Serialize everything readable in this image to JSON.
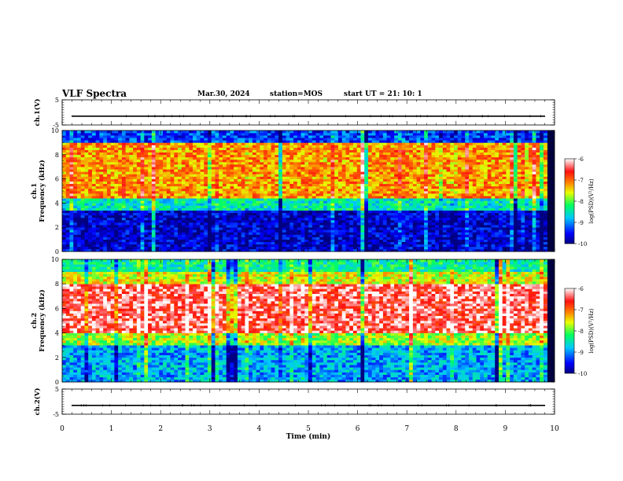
{
  "header": {
    "title": "VLF Spectra",
    "date": "Mar.30, 2024",
    "station": "station=MOS",
    "start": "start UT =  21: 10: 1"
  },
  "chart_data": [
    {
      "type": "line",
      "panel": "ch1-waveform",
      "ylabel": "ch.1(V)",
      "ylim": [
        -5,
        5
      ],
      "yticks": [
        "5",
        "-5"
      ],
      "xlim": [
        0,
        10
      ],
      "series": [
        {
          "values": [
            -1.5,
            -1.5
          ]
        }
      ]
    },
    {
      "type": "heatmap",
      "panel": "ch1-spectrogram",
      "ylabel": "ch.1\nFrequency (kHz)",
      "ylim": [
        0,
        10
      ],
      "yticks": [
        "0",
        "2",
        "4",
        "6",
        "8",
        "10"
      ],
      "xlim": [
        0,
        9.85
      ],
      "colorbar": {
        "label": "log(PSD)(V²/Hz)",
        "range": [
          -10,
          -6
        ],
        "ticks": [
          "-6",
          "-7",
          "-8",
          "-9",
          "-10"
        ]
      },
      "bands": [
        {
          "f_range": [
            0,
            3.5
          ],
          "log_psd": -9.7
        },
        {
          "f_range": [
            3.5,
            4.5
          ],
          "log_psd": -8.5
        },
        {
          "f_range": [
            4.5,
            9.0
          ],
          "log_psd": -7.2
        },
        {
          "f_range": [
            9.0,
            10.0
          ],
          "log_psd": -9.3
        }
      ]
    },
    {
      "type": "heatmap",
      "panel": "ch2-spectrogram",
      "ylabel": "ch.2\nFrequency (kHz)",
      "ylim": [
        0,
        10
      ],
      "yticks": [
        "0",
        "2",
        "4",
        "6",
        "8",
        "10"
      ],
      "xlim": [
        0,
        9.85
      ],
      "colorbar": {
        "label": "log(PSD)(V²/Hz)",
        "range": [
          -10,
          -6
        ],
        "ticks": [
          "-6",
          "-7",
          "-8",
          "-9",
          "-10"
        ]
      },
      "bands": [
        {
          "f_range": [
            0,
            3.0
          ],
          "log_psd": -8.9
        },
        {
          "f_range": [
            3.0,
            4.0
          ],
          "log_psd": -7.8
        },
        {
          "f_range": [
            4.0,
            8.0
          ],
          "log_psd": -6.4
        },
        {
          "f_range": [
            8.0,
            9.0
          ],
          "log_psd": -7.6
        },
        {
          "f_range": [
            9.0,
            10.0
          ],
          "log_psd": -8.4
        }
      ]
    },
    {
      "type": "line",
      "panel": "ch2-waveform",
      "ylabel": "ch.2(V)",
      "ylim": [
        -5,
        5
      ],
      "yticks": [
        "5",
        "-5"
      ],
      "xlim": [
        0,
        10
      ],
      "series": [
        {
          "values": [
            -1.5,
            -1.5
          ]
        }
      ]
    }
  ],
  "xaxis": {
    "label": "Time (min)",
    "ticks": [
      "0",
      "1",
      "2",
      "3",
      "4",
      "5",
      "6",
      "7",
      "8",
      "9",
      "10"
    ]
  }
}
